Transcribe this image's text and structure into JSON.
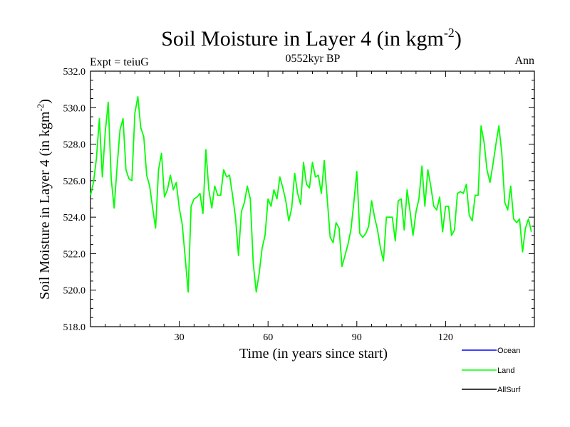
{
  "chart_data": {
    "type": "line",
    "title": "Soil Moisture in Layer 4 (in kgm",
    "title_sup": "-2",
    "title_end": ")",
    "subtitle_left": "Expt = teiuG",
    "subtitle_center": "0552kyr BP",
    "subtitle_right": "Ann",
    "xlabel": "Time (in years since start)",
    "ylabel": "Soil Moisture in Layer 4 (in kgm",
    "ylabel_sup": "-2",
    "ylabel_end": ")",
    "xlim": [
      0,
      150
    ],
    "ylim": [
      518,
      532
    ],
    "xticks": [
      30,
      60,
      90,
      120
    ],
    "xtick_labels": [
      "30",
      "60",
      "90",
      "120"
    ],
    "yticks": [
      518,
      520,
      522,
      524,
      526,
      528,
      530,
      532
    ],
    "ytick_labels": [
      "518.0",
      "520.0",
      "522.0",
      "524.0",
      "526.0",
      "528.0",
      "530.0",
      "532.0"
    ],
    "legend": [
      {
        "name": "Ocean",
        "color": "#0000ff"
      },
      {
        "name": "Land",
        "color": "#00ff00"
      },
      {
        "name": "AllSurf",
        "color": "#000000"
      }
    ],
    "series": [
      {
        "name": "Land",
        "color": "#00ff00",
        "x": [
          0,
          1,
          2,
          3,
          4,
          5,
          6,
          7,
          8,
          9,
          10,
          11,
          12,
          13,
          14,
          15,
          16,
          17,
          18,
          19,
          20,
          21,
          22,
          23,
          24,
          25,
          26,
          27,
          28,
          29,
          30,
          31,
          32,
          33,
          34,
          35,
          36,
          37,
          38,
          39,
          40,
          41,
          42,
          43,
          44,
          45,
          46,
          47,
          48,
          49,
          50,
          51,
          52,
          53,
          54,
          55,
          56,
          57,
          58,
          59,
          60,
          61,
          62,
          63,
          64,
          65,
          66,
          67,
          68,
          69,
          70,
          71,
          72,
          73,
          74,
          75,
          76,
          77,
          78,
          79,
          80,
          81,
          82,
          83,
          84,
          85,
          86,
          87,
          88,
          89,
          90,
          91,
          92,
          93,
          94,
          95,
          96,
          97,
          98,
          99,
          100,
          101,
          102,
          103,
          104,
          105,
          106,
          107,
          108,
          109,
          110,
          111,
          112,
          113,
          114,
          115,
          116,
          117,
          118,
          119,
          120,
          121,
          122,
          123,
          124,
          125,
          126,
          127,
          128,
          129,
          130,
          131,
          132,
          133,
          134,
          135,
          136,
          137,
          138,
          139,
          140,
          141,
          142,
          143,
          144,
          145,
          146,
          147,
          148,
          149
        ],
        "values": [
          525.2,
          525.9,
          527.2,
          529.4,
          526.2,
          528.7,
          530.3,
          526.1,
          524.5,
          526.8,
          528.8,
          529.4,
          526.6,
          526.1,
          526.0,
          529.7,
          530.6,
          528.9,
          528.4,
          526.3,
          525.7,
          524.5,
          523.4,
          526.6,
          527.5,
          525.1,
          525.5,
          526.3,
          525.5,
          525.9,
          524.5,
          523.6,
          521.8,
          519.9,
          524.6,
          525.0,
          525.1,
          525.3,
          524.2,
          527.7,
          525.5,
          524.5,
          525.7,
          525.2,
          525.2,
          526.6,
          526.2,
          526.3,
          525.2,
          524.0,
          521.9,
          524.3,
          524.8,
          525.7,
          525.0,
          521.5,
          519.9,
          520.9,
          522.3,
          523.0,
          525.0,
          524.6,
          525.5,
          525.0,
          526.2,
          525.6,
          524.9,
          523.8,
          524.5,
          526.4,
          525.3,
          524.7,
          527.0,
          525.8,
          525.6,
          527.0,
          526.2,
          526.3,
          525.3,
          527.1,
          525.0,
          522.9,
          522.6,
          523.7,
          523.4,
          521.3,
          521.9,
          522.5,
          523.3,
          524.8,
          526.5,
          523.1,
          522.9,
          523.1,
          523.5,
          524.9,
          524.0,
          523.3,
          522.3,
          521.6,
          524.0,
          524.0,
          524.0,
          522.7,
          524.9,
          525.0,
          523.3,
          525.5,
          524.3,
          523.0,
          524.3,
          525.0,
          526.8,
          524.6,
          526.6,
          525.7,
          524.6,
          524.4,
          525.1,
          523.2,
          524.6,
          524.6,
          523.0,
          523.3,
          525.3,
          525.4,
          525.3,
          525.8,
          524.1,
          523.8,
          525.2,
          525.2,
          529.0,
          528.1,
          526.6,
          525.9,
          526.9,
          528.0,
          529.0,
          527.5,
          524.8,
          524.4,
          525.7,
          523.9,
          523.7,
          523.9,
          522.1,
          523.4,
          523.9,
          523.2
        ]
      }
    ]
  }
}
